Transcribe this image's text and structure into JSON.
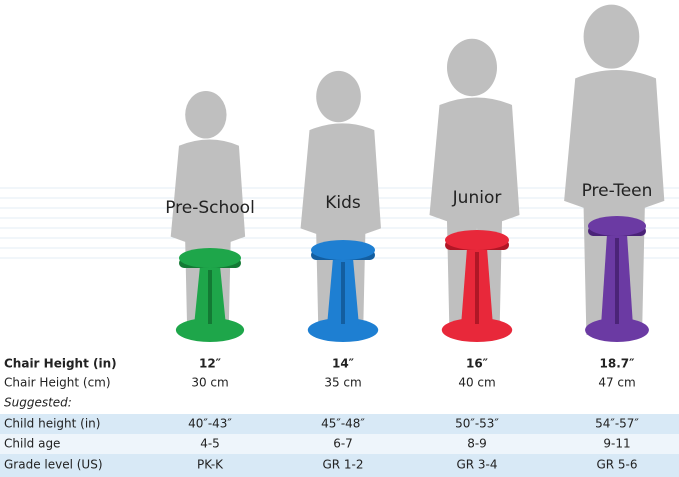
{
  "columns": [
    "Pre-School",
    "Kids",
    "Junior",
    "Pre-Teen"
  ],
  "table": {
    "rows": [
      {
        "label": "Chair Height (in)",
        "values": [
          "12″",
          "14″",
          "16″",
          "18.7″"
        ]
      },
      {
        "label": "Chair Height (cm)",
        "values": [
          "30 cm",
          "35 cm",
          "40 cm",
          "47 cm"
        ]
      },
      {
        "label": "Suggested:",
        "values": []
      },
      {
        "label": "Child height (in)",
        "values": [
          "40″-43″",
          "45″-48″",
          "50″-53″",
          "54″-57″"
        ]
      },
      {
        "label": "Child age",
        "values": [
          "4-5",
          "6-7",
          "8-9",
          "9-11"
        ]
      },
      {
        "label": "Grade level (US)",
        "values": [
          "PK-K",
          "GR 1-2",
          "GR 3-4",
          "GR 5-6"
        ]
      }
    ]
  }
}
